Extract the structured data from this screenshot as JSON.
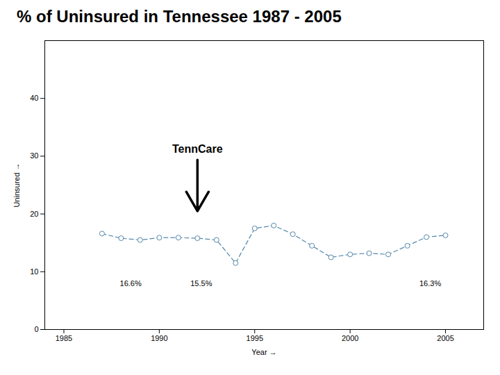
{
  "chart_data": {
    "type": "line",
    "title": "% of Uninsured in Tennessee 1987 - 2005",
    "x_label": "Year",
    "y_label": "Uninsured",
    "x": [
      1987,
      1988,
      1989,
      1990,
      1991,
      1992,
      1993,
      1994,
      1995,
      1996,
      1997,
      1998,
      1999,
      2000,
      2001,
      2002,
      2003,
      2004,
      2005
    ],
    "values": [
      16.6,
      15.8,
      15.5,
      15.9,
      15.9,
      15.8,
      15.5,
      11.5,
      17.5,
      18.0,
      16.5,
      14.5,
      12.5,
      13.0,
      13.2,
      13.0,
      14.5,
      16.0,
      16.3
    ],
    "color": "#5588aa",
    "marker": "circle",
    "line_style": "dashed",
    "xlim": [
      1984,
      2007
    ],
    "xticks": [
      1985,
      1990,
      1995,
      2000,
      2005
    ],
    "ylim": [
      0,
      50
    ],
    "yticks": [
      0,
      10,
      20,
      30,
      40
    ],
    "annotations": [
      {
        "text": "TennCare",
        "x": 1992,
        "y": 32,
        "arrow_to_y": 20.5
      },
      {
        "text": "16.6%",
        "x": 1988.5,
        "y": 7.5
      },
      {
        "text": "15.5%",
        "x": 1992.2,
        "y": 7.5
      },
      {
        "text": "16.3%",
        "x": 2004.2,
        "y": 7.5
      }
    ]
  }
}
